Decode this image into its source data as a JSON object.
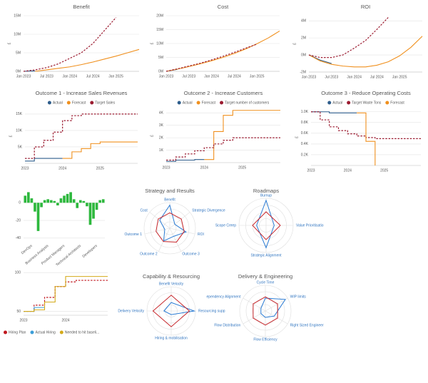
{
  "chart_data": [
    {
      "type": "line",
      "title": "Benefit",
      "ylabel": "£",
      "categories": [
        "Jan 2023",
        null,
        "Jul 2023",
        null,
        "Jan 2024",
        null,
        "Jul 2024",
        null,
        "Jan 2025",
        null,
        null
      ],
      "ylim": [
        0,
        15000000
      ],
      "yticks": [
        {
          "value": 0,
          "label": "0M"
        },
        {
          "value": 5000000,
          "label": "5M"
        },
        {
          "value": 10000000,
          "label": "10M"
        },
        {
          "value": 15000000,
          "label": "15M"
        }
      ],
      "grid": true,
      "series": [
        {
          "color": "#2e5d8c",
          "style": "solid",
          "values": [
            0,
            100000,
            null,
            null,
            null,
            null,
            null,
            null,
            null,
            null,
            null
          ]
        },
        {
          "color": "#f0901e",
          "style": "solid",
          "values": [
            null,
            0,
            400000,
            800000,
            1200000,
            1800000,
            2500000,
            3300000,
            4100000,
            5000000,
            5900000
          ]
        },
        {
          "color": "#9b1b30",
          "style": "dashed",
          "values": [
            0,
            400000,
            1000000,
            2000000,
            3500000,
            5000000,
            7500000,
            11000000,
            14500000,
            null,
            null
          ]
        }
      ]
    },
    {
      "type": "line",
      "title": "Cost",
      "ylabel": "£",
      "categories": [
        "Jan 2023",
        null,
        "Jul 2023",
        null,
        "Jan 2024",
        null,
        "Jul 2024",
        null,
        "Jan 2025",
        null,
        null
      ],
      "ylim": [
        0,
        20000000
      ],
      "yticks": [
        {
          "value": 0,
          "label": "0M"
        },
        {
          "value": 5000000,
          "label": "5M"
        },
        {
          "value": 10000000,
          "label": "10M"
        },
        {
          "value": 15000000,
          "label": "15M"
        },
        {
          "value": 20000000,
          "label": "20M"
        }
      ],
      "grid": true,
      "series": [
        {
          "color": "#2e5d8c",
          "style": "solid",
          "values": [
            0,
            700000,
            null,
            null,
            null,
            null,
            null,
            null,
            null,
            null,
            null
          ]
        },
        {
          "color": "#f0901e",
          "style": "solid",
          "values": [
            0,
            800000,
            1700000,
            2700000,
            3800000,
            5000000,
            6400000,
            8000000,
            9900000,
            12000000,
            14500000
          ]
        },
        {
          "color": "#9b1b30",
          "style": "dashed",
          "values": [
            0,
            900000,
            1900000,
            2900000,
            4100000,
            5400000,
            6800000,
            8300000,
            9800000,
            null,
            null
          ]
        }
      ]
    },
    {
      "type": "line",
      "title": "ROI",
      "ylabel": "£",
      "categories": [
        "Jan 2023",
        null,
        "Jul 2023",
        null,
        "Jan 2024",
        null,
        "Jul 2024",
        null,
        "Jan 2025",
        null,
        null
      ],
      "ylim": [
        -2000000,
        4600000
      ],
      "yticks": [
        {
          "value": -2000000,
          "label": "-2M"
        },
        {
          "value": 0,
          "label": "0M"
        },
        {
          "value": 2000000,
          "label": "2M"
        },
        {
          "value": 4000000,
          "label": "4M"
        }
      ],
      "grid": true,
      "series": [
        {
          "color": "#2e5d8c",
          "style": "solid",
          "values": [
            0,
            -600000,
            -1000000,
            null,
            null,
            null,
            null,
            null,
            null,
            null,
            null
          ]
        },
        {
          "color": "#f0901e",
          "style": "solid",
          "values": [
            0,
            -700000,
            -1100000,
            -1300000,
            -1400000,
            -1400000,
            -1200000,
            -800000,
            -100000,
            900000,
            2200000
          ]
        },
        {
          "color": "#9b1b30",
          "style": "dashed",
          "values": [
            0,
            -300000,
            -300000,
            0,
            800000,
            1700000,
            3000000,
            4400000,
            null,
            null,
            null
          ]
        }
      ]
    },
    {
      "type": "line",
      "title": "Outcome 1 - Increase Sales Revenues",
      "ylabel": "£",
      "step": true,
      "legend": "top",
      "categories": [
        "2023",
        null,
        null,
        null,
        "2024",
        null,
        null,
        null,
        "2025",
        null,
        null,
        null,
        null
      ],
      "ylim": [
        0,
        16500
      ],
      "yticks": [
        {
          "value": 5000,
          "label": "5K"
        },
        {
          "value": 10000,
          "label": "10K"
        },
        {
          "value": 15000,
          "label": "15K"
        }
      ],
      "grid": true,
      "series": [
        {
          "name": "Actual",
          "color": "#2e5d8c",
          "style": "solid",
          "values": [
            700,
            1500,
            1500,
            1500,
            1500,
            null,
            null,
            null,
            null,
            null,
            null,
            null,
            null
          ]
        },
        {
          "name": "Forecast",
          "color": "#f0901e",
          "style": "solid",
          "values": [
            null,
            null,
            null,
            null,
            1500,
            3500,
            4500,
            6000,
            6500,
            6500,
            6500,
            6500,
            6500
          ]
        },
        {
          "name": "Target Sales",
          "color": "#9b1b30",
          "style": "dashed",
          "values": [
            1500,
            5000,
            7000,
            9500,
            13000,
            14500,
            15000,
            15000,
            15000,
            15000,
            15000,
            15000,
            15000
          ]
        }
      ]
    },
    {
      "type": "line",
      "title": "Outcome 2 - Increase Customers",
      "ylabel": "£",
      "step": true,
      "legend": "top",
      "categories": [
        "2023",
        null,
        null,
        null,
        "2024",
        null,
        null,
        null,
        "2025",
        null,
        null,
        null,
        null
      ],
      "ylim": [
        0,
        4300
      ],
      "yticks": [
        {
          "value": 1000,
          "label": "1K"
        },
        {
          "value": 2000,
          "label": "2K"
        },
        {
          "value": 3000,
          "label": "3K"
        },
        {
          "value": 4000,
          "label": "4K"
        }
      ],
      "grid": true,
      "series": [
        {
          "name": "Actual",
          "color": "#2e5d8c",
          "style": "solid",
          "values": [
            100,
            200,
            200,
            250,
            250,
            null,
            null,
            null,
            null,
            null,
            null,
            null,
            null
          ]
        },
        {
          "name": "Forecast",
          "color": "#f0901e",
          "style": "solid",
          "values": [
            null,
            null,
            null,
            null,
            250,
            2500,
            3800,
            4200,
            4200,
            4200,
            4200,
            4200,
            4200
          ]
        },
        {
          "name": "Target number of customers",
          "color": "#9b1b30",
          "style": "dashed",
          "values": [
            200,
            450,
            700,
            950,
            1200,
            1500,
            1800,
            2000,
            2000,
            2000,
            2000,
            2000,
            2000
          ]
        }
      ]
    },
    {
      "type": "line",
      "title": "Outcome 3 - Reduce Operating Costs",
      "ylabel": "£",
      "step": true,
      "legend": "top",
      "categories": [
        "2023",
        null,
        null,
        null,
        "2024",
        null,
        null,
        null,
        "2025",
        null,
        null,
        null,
        null
      ],
      "ylim": [
        0,
        1050
      ],
      "yticks": [
        {
          "value": 200,
          "label": "0.2K"
        },
        {
          "value": 400,
          "label": "0.4K"
        },
        {
          "value": 600,
          "label": "0.6K"
        },
        {
          "value": 800,
          "label": "0.8K"
        },
        {
          "value": 1000,
          "label": "1.0K"
        }
      ],
      "grid": true,
      "series": [
        {
          "name": "Actual",
          "color": "#2e5d8c",
          "style": "solid",
          "values": [
            1000,
            1000,
            980,
            980,
            980,
            980,
            null,
            null,
            null,
            null,
            null,
            null,
            null
          ]
        },
        {
          "name": "Target Waste Tons",
          "color": "#9b1b30",
          "style": "dashed",
          "values": [
            1000,
            850,
            720,
            650,
            590,
            550,
            520,
            500,
            500,
            500,
            500,
            500,
            500
          ]
        },
        {
          "name": "Forecast",
          "color": "#f0901e",
          "style": "solid",
          "values": [
            null,
            null,
            null,
            null,
            null,
            980,
            450,
            0,
            null,
            null,
            null,
            null,
            null
          ]
        }
      ]
    },
    {
      "type": "bar",
      "color": "#2db83d",
      "categories": [
        null,
        null,
        "DevOps",
        null,
        null,
        null,
        null,
        "Business Analysts",
        null,
        null,
        null,
        null,
        "Product Managers",
        null,
        null,
        null,
        null,
        "Technical Architects",
        null,
        null,
        null,
        null,
        "Developers",
        null,
        null
      ],
      "values": [
        8,
        12,
        5,
        -10,
        -32,
        -5,
        3,
        4,
        3,
        2,
        -3,
        5,
        8,
        10,
        12,
        4,
        -6,
        3,
        2,
        -4,
        -25,
        -18,
        -8,
        3,
        4
      ],
      "ylim": [
        -45,
        18
      ],
      "yticks": [
        0,
        -20,
        -40
      ],
      "grid": true
    },
    {
      "type": "radar",
      "title": "Strategy and Results",
      "axes": [
        "Benefit",
        "Strategic Divergence",
        "ROI",
        "Outcome 3",
        "Outcome 2",
        "Outcome 1",
        "Cost"
      ],
      "rlim": [
        0,
        4
      ],
      "rticks": [
        1,
        2,
        3,
        4
      ],
      "series": [
        {
          "color": "#2a7bd4",
          "values": [
            3.6,
            1.0,
            2.6,
            1.4,
            2.2,
            0.8,
            2.0
          ]
        },
        {
          "color": "#c8282d",
          "values": [
            2.4,
            2.3,
            2.3,
            2.4,
            2.3,
            2.2,
            2.3
          ]
        }
      ]
    },
    {
      "type": "radar",
      "title": "Roadmaps",
      "axes": [
        "Burnup",
        "Value Prioritisatio",
        "Strategic Alignment",
        "Scope Creep"
      ],
      "rlim": [
        0,
        4
      ],
      "rticks": [
        1,
        2,
        3,
        4
      ],
      "series": [
        {
          "color": "#2a7bd4",
          "values": [
            3.7,
            1.2,
            3.3,
            1.4
          ]
        },
        {
          "color": "#c8282d",
          "values": [
            2.0,
            2.1,
            2.1,
            2.0
          ]
        }
      ]
    },
    {
      "type": "line",
      "step": true,
      "legend": "bottom",
      "categories": [
        "2023",
        null,
        null,
        null,
        "2024",
        null,
        null,
        null,
        null
      ],
      "ylim": [
        45,
        102
      ],
      "yticks": [
        50,
        100
      ],
      "grid": true,
      "series": [
        {
          "name": "Hiring Plan",
          "color": "#c0181f",
          "style": "dashed",
          "values": [
            50,
            58,
            68,
            82,
            88,
            90,
            90,
            90,
            90
          ]
        },
        {
          "name": "Actual Hiring",
          "color": "#3b9ed8",
          "style": "solid",
          "values": [
            50,
            55,
            55,
            null,
            null,
            null,
            null,
            null,
            null
          ]
        },
        {
          "name": "Needed to hit baseli...",
          "color": "#d4aa1a",
          "style": "solid",
          "values": [
            50,
            52,
            62,
            82,
            95,
            95,
            95,
            95,
            95
          ]
        }
      ]
    },
    {
      "type": "radar",
      "title": "Capability & Resourcing",
      "axes": [
        "Benefit Velocity",
        "Resourcing supp",
        "Hiring  & mobilisation",
        "Delivery Velocity"
      ],
      "rlim": [
        0,
        4
      ],
      "rticks": [
        1,
        2,
        3,
        4
      ],
      "series": [
        {
          "color": "#2a7bd4",
          "values": [
            1.4,
            3.8,
            0.6,
            1.2
          ]
        },
        {
          "color": "#c8282d",
          "values": [
            2.6,
            3.0,
            2.6,
            3.0
          ]
        }
      ]
    },
    {
      "type": "radar",
      "title": "Delivery & Engineering",
      "axes": [
        "Cycle Time",
        "WIP limits",
        "Right Sized Engineer",
        "Flow Efficiency",
        "Flow Distribution",
        "ependency Alignment"
      ],
      "rlim": [
        0,
        4
      ],
      "rticks": [
        1,
        2,
        3,
        4
      ],
      "series": [
        {
          "color": "#2a7bd4",
          "values": [
            2.0,
            3.6,
            1.6,
            1.0,
            0.8,
            0.8
          ]
        },
        {
          "color": "#c8282d",
          "values": [
            2.2,
            2.2,
            2.2,
            2.2,
            2.2,
            2.2
          ]
        }
      ]
    }
  ]
}
